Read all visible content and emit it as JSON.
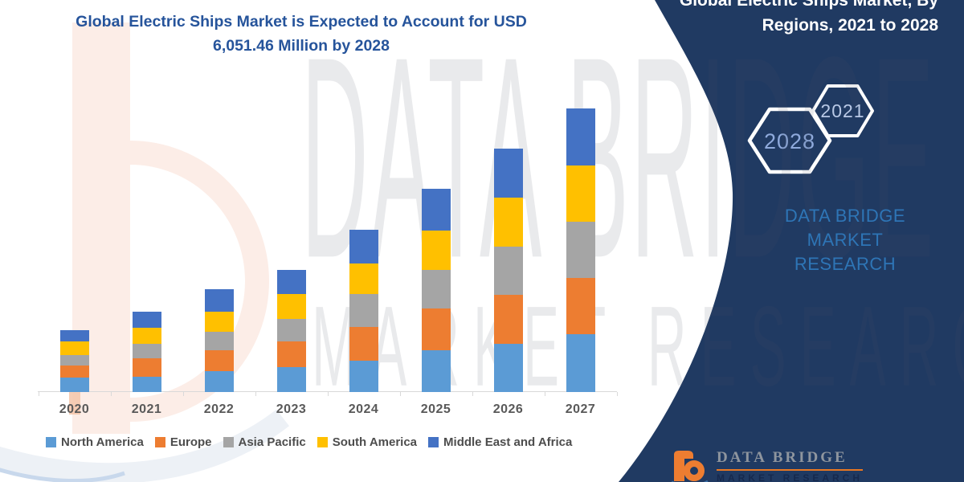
{
  "header": {
    "title_line1": "Global Electric Ships Market is Expected to Account for USD",
    "title_line2": "6,051.46 Million by 2028"
  },
  "side_panel": {
    "bg_color": "#203A62",
    "title_line1": "Global Electric Ships Market, By",
    "title_line2": "Regions, 2021 to 2028",
    "hexagon_left": "2028",
    "hexagon_right": "2021",
    "brand_line1": "DATA BRIDGE MARKET",
    "brand_line2": "RESEARCH"
  },
  "watermark": {
    "line1": "DATA BRIDGE",
    "line2": "MARKET RESEARCH"
  },
  "footer_logo": {
    "brand": "DATA BRIDGE",
    "sub": "MARKET RESEARCH"
  },
  "chart_data": {
    "type": "bar",
    "stacked": true,
    "title": "Global Electric Ships Market is Expected to Account for USD 6,051.46 Million by 2028",
    "xlabel": "",
    "ylabel": "",
    "value_axis": "none shown (illustrative stacked bars, relative units estimated from pixel heights)",
    "grid": false,
    "legend_position": "bottom",
    "categories": [
      "2020",
      "2021",
      "2022",
      "2023",
      "2024",
      "2025",
      "2026",
      "2027"
    ],
    "series": [
      {
        "name": "North America",
        "color": "#5B9BD5",
        "values": [
          18,
          19,
          26,
          31,
          39,
          52,
          60,
          72
        ]
      },
      {
        "name": "Europe",
        "color": "#ED7D31",
        "values": [
          15,
          23,
          26,
          32,
          42,
          52,
          61,
          70
        ]
      },
      {
        "name": "Asia Pacific",
        "color": "#A5A5A5",
        "values": [
          13,
          18,
          23,
          28,
          41,
          48,
          60,
          70
        ]
      },
      {
        "name": "South America",
        "color": "#FFC000",
        "values": [
          17,
          20,
          25,
          31,
          38,
          49,
          61,
          70
        ]
      },
      {
        "name": "Middle East and Africa",
        "color": "#4472C4",
        "values": [
          14,
          20,
          28,
          30,
          42,
          52,
          61,
          71
        ]
      }
    ],
    "totals_by_year": [
      77,
      100,
      128,
      152,
      202,
      253,
      303,
      353
    ]
  }
}
